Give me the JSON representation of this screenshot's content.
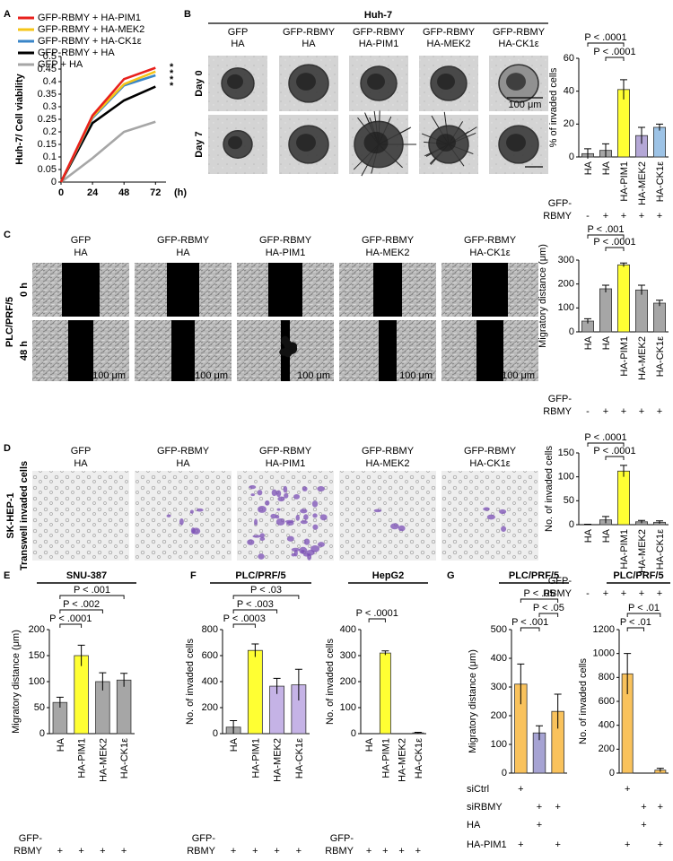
{
  "panel_letters": [
    "A",
    "B",
    "C",
    "D",
    "E",
    "F",
    "G"
  ],
  "image_panels": [
    {
      "title": "Huh-7",
      "columns": [
        [
          "GFP",
          "HA"
        ],
        [
          "GFP-RBMY",
          "HA"
        ],
        [
          "GFP-RBMY",
          "HA-PIM1"
        ],
        [
          "GFP-RBMY",
          "HA-MEK2"
        ],
        [
          "GFP-RBMY",
          "HA-CK1ε"
        ]
      ],
      "rows": [
        "Day 0",
        "Day 7"
      ],
      "scale_bar": "100 μm"
    },
    {
      "side_label": "PLC/PRF/5",
      "columns": [
        [
          "GFP",
          "HA"
        ],
        [
          "GFP-RBMY",
          "HA"
        ],
        [
          "GFP-RBMY",
          "HA-PIM1"
        ],
        [
          "GFP-RBMY",
          "HA-MEK2"
        ],
        [
          "GFP-RBMY",
          "HA-CK1ε"
        ]
      ],
      "rows": [
        "0 h",
        "48 h"
      ],
      "scale_bar": "100 μm"
    },
    {
      "side_label": "SK-HEP-1",
      "side_sublabel": "Transwell invaded cells",
      "columns": [
        [
          "GFP",
          "HA"
        ],
        [
          "GFP-RBMY",
          "HA"
        ],
        [
          "GFP-RBMY",
          "HA-PIM1"
        ],
        [
          "GFP-RBMY",
          "HA-MEK2"
        ],
        [
          "GFP-RBMY",
          "HA-CK1ε"
        ]
      ]
    }
  ],
  "chart_data": [
    {
      "type": "line",
      "y_label": "Huh-7/ Cell viability",
      "x_label": "(h)",
      "x": [
        0,
        24,
        48,
        72
      ],
      "xlim": [
        0,
        80
      ],
      "xticks": [
        0,
        24,
        48,
        72
      ],
      "ylim": [
        0,
        0.5
      ],
      "yticks": [
        0,
        0.05,
        0.1,
        0.15,
        0.2,
        0.25,
        0.3,
        0.35,
        0.4,
        0.45,
        0.5
      ],
      "series": [
        {
          "name": "GFP-RBMY + HA-PIM1",
          "color": "#e8211d",
          "values": [
            0,
            0.265,
            0.41,
            0.455
          ]
        },
        {
          "name": "GFP-RBMY + HA-MEK2",
          "color": "#f5c518",
          "values": [
            0,
            0.26,
            0.39,
            0.44
          ]
        },
        {
          "name": "GFP-RBMY + HA-CK1ε",
          "color": "#3a86c8",
          "values": [
            0,
            0.255,
            0.385,
            0.425
          ]
        },
        {
          "name": "GFP-RBMY + HA",
          "color": "#000000",
          "values": [
            0,
            0.235,
            0.325,
            0.38
          ]
        },
        {
          "name": "GFP + HA",
          "color": "#a6a6a6",
          "values": [
            0,
            0.095,
            0.2,
            0.24
          ]
        }
      ],
      "annotations": [
        "*",
        "*",
        "*",
        "*"
      ]
    },
    {
      "type": "bar",
      "y_label": "% of invaded cells",
      "categories": [
        "HA",
        "HA",
        "HA-PIM1",
        "HA-MEK2",
        "HA-CK1ε"
      ],
      "values": [
        2,
        4,
        41,
        13,
        18
      ],
      "errors": [
        3,
        4,
        6,
        5,
        2
      ],
      "colors": [
        "#a6a6a6",
        "#a6a6a6",
        "#ffff33",
        "#b4a7d6",
        "#9dc3e6"
      ],
      "ylim": [
        0,
        60
      ],
      "yticks": [
        0,
        20,
        40,
        60
      ],
      "comparisons": [
        {
          "pair": [
            0,
            2
          ],
          "label": "P < .0001"
        },
        {
          "pair": [
            1,
            2
          ],
          "label": "P < .0001"
        }
      ],
      "conditions": [
        {
          "name": [
            "GFP-",
            "RBMY"
          ],
          "signs": [
            "-",
            "+",
            "+",
            "+",
            "+"
          ]
        }
      ]
    },
    {
      "type": "bar",
      "y_label": "Migratory distance (μm)",
      "categories": [
        "HA",
        "HA",
        "HA-PIM1",
        "HA-MEK2",
        "HA-CK1ε"
      ],
      "values": [
        45,
        180,
        280,
        175,
        120
      ],
      "errors": [
        10,
        15,
        8,
        20,
        12
      ],
      "colors": [
        "#a6a6a6",
        "#a6a6a6",
        "#ffff33",
        "#a6a6a6",
        "#a6a6a6"
      ],
      "ylim": [
        0,
        300
      ],
      "yticks": [
        0,
        100,
        200,
        300
      ],
      "comparisons": [
        {
          "pair": [
            0,
            2
          ],
          "label": "P < .001"
        },
        {
          "pair": [
            1,
            2
          ],
          "label": "P < .0001"
        }
      ],
      "conditions": [
        {
          "name": [
            "GFP-",
            "RBMY"
          ],
          "signs": [
            "-",
            "+",
            "+",
            "+",
            "+"
          ]
        }
      ]
    },
    {
      "type": "bar",
      "y_label": "No. of invaded cells",
      "categories": [
        "HA",
        "HA",
        "HA-PIM1",
        "HA-MEK2",
        "HA-CK1ε"
      ],
      "values": [
        0,
        10,
        112,
        6,
        5
      ],
      "errors": [
        1,
        7,
        12,
        3,
        3
      ],
      "colors": [
        "#a6a6a6",
        "#a6a6a6",
        "#ffff33",
        "#a6a6a6",
        "#a6a6a6"
      ],
      "ylim": [
        0,
        150
      ],
      "yticks": [
        0,
        50,
        100,
        150
      ],
      "comparisons": [
        {
          "pair": [
            0,
            2
          ],
          "label": "P < .0001"
        },
        {
          "pair": [
            1,
            2
          ],
          "label": "P < .0001"
        }
      ],
      "conditions": [
        {
          "name": [
            "GFP-",
            "RBMY"
          ],
          "signs": [
            "-",
            "+",
            "+",
            "+",
            "+"
          ]
        }
      ]
    },
    {
      "type": "bar",
      "title": "SNU-387",
      "y_label": "Migratory distance (μm)",
      "categories": [
        "HA",
        "HA-PIM1",
        "HA-MEK2",
        "HA-CK1ε"
      ],
      "values": [
        60,
        150,
        100,
        103
      ],
      "errors": [
        10,
        20,
        17,
        13
      ],
      "colors": [
        "#a6a6a6",
        "#ffff33",
        "#a6a6a6",
        "#a6a6a6"
      ],
      "ylim": [
        0,
        200
      ],
      "yticks": [
        0,
        50,
        100,
        150,
        200
      ],
      "comparisons": [
        {
          "pair": [
            0,
            3
          ],
          "label": "P < .001"
        },
        {
          "pair": [
            0,
            2
          ],
          "label": "P < .002"
        },
        {
          "pair": [
            0,
            1
          ],
          "label": "P < .0001"
        }
      ],
      "conditions": [
        {
          "name": [
            "GFP-",
            "RBMY"
          ],
          "signs": [
            "+",
            "+",
            "+",
            "+"
          ]
        }
      ]
    },
    {
      "type": "bar",
      "title": "PLC/PRF/5",
      "y_label": "No. of invaded cells",
      "categories": [
        "HA",
        "HA-PIM1",
        "HA-MEK2",
        "HA-CK1ε"
      ],
      "values": [
        50,
        640,
        365,
        375
      ],
      "errors": [
        50,
        50,
        60,
        120
      ],
      "colors": [
        "#a6a6a6",
        "#ffff33",
        "#c5b3e6",
        "#c5b3e6"
      ],
      "ylim": [
        0,
        800
      ],
      "yticks": [
        0,
        200,
        400,
        600,
        800
      ],
      "comparisons": [
        {
          "pair": [
            0,
            3
          ],
          "label": "P < .03"
        },
        {
          "pair": [
            0,
            2
          ],
          "label": "P < .003"
        },
        {
          "pair": [
            0,
            1
          ],
          "label": "P < .0003"
        }
      ],
      "conditions": [
        {
          "name": [
            "GFP-",
            "RBMY"
          ],
          "signs": [
            "+",
            "+",
            "+",
            "+"
          ]
        }
      ]
    },
    {
      "type": "bar",
      "title": "HepG2",
      "y_label": "No. of invaded cells",
      "categories": [
        "HA",
        "HA-PIM1",
        "HA-MEK2",
        "HA-CK1ε"
      ],
      "values": [
        0,
        310,
        0,
        3
      ],
      "errors": [
        0,
        8,
        0,
        2
      ],
      "colors": [
        "#a6a6a6",
        "#ffff33",
        "#c5b3e6",
        "#c5b3e6"
      ],
      "ylim": [
        0,
        400
      ],
      "yticks": [
        0,
        100,
        200,
        300,
        400
      ],
      "comparisons": [
        {
          "pair": [
            0,
            1
          ],
          "label": "P < .0001"
        }
      ],
      "conditions": [
        {
          "name": [
            "GFP-",
            "RBMY"
          ],
          "signs": [
            "+",
            "+",
            "+",
            "+"
          ]
        }
      ]
    },
    {
      "type": "bar",
      "title": "PLC/PRF/5",
      "y_label": "Migratory distance (μm)",
      "values": [
        310,
        140,
        215
      ],
      "errors": [
        70,
        25,
        60
      ],
      "colors": [
        "#f9c25c",
        "#a6a3d3",
        "#f9c25c"
      ],
      "ylim": [
        0,
        500
      ],
      "yticks": [
        0,
        100,
        200,
        300,
        400,
        500
      ],
      "comparisons": [
        {
          "pair": [
            0,
            2
          ],
          "label": "P < .05"
        },
        {
          "pair": [
            1,
            2
          ],
          "label": "P < .05"
        },
        {
          "pair": [
            0,
            1
          ],
          "label": "P < .001"
        }
      ],
      "conditions": [
        {
          "name": "siCtrl",
          "signs": [
            "+",
            null,
            null
          ]
        },
        {
          "name": "siRBMY",
          "signs": [
            null,
            "+",
            "+"
          ]
        },
        {
          "name": "HA",
          "signs": [
            null,
            "+",
            null
          ]
        },
        {
          "name": "HA-PIM1",
          "signs": [
            "+",
            null,
            "+"
          ]
        }
      ]
    },
    {
      "type": "bar",
      "title": "PLC/PRF/5",
      "y_label": "No. of invaded cells",
      "values": [
        830,
        0,
        25
      ],
      "errors": [
        170,
        0,
        15
      ],
      "colors": [
        "#f9c25c",
        "#a6a3d3",
        "#f9c25c"
      ],
      "ylim": [
        0,
        1200
      ],
      "yticks": [
        0,
        200,
        400,
        600,
        800,
        1000,
        1200
      ],
      "comparisons": [
        {
          "pair": [
            0,
            2
          ],
          "label": "P < .01"
        },
        {
          "pair": [
            0,
            1
          ],
          "label": "P < .01"
        }
      ],
      "conditions": [
        {
          "signs": [
            "+",
            null,
            null
          ]
        },
        {
          "signs": [
            null,
            "+",
            "+"
          ]
        },
        {
          "signs": [
            null,
            "+",
            null
          ]
        },
        {
          "signs": [
            "+",
            null,
            "+"
          ]
        }
      ]
    }
  ]
}
